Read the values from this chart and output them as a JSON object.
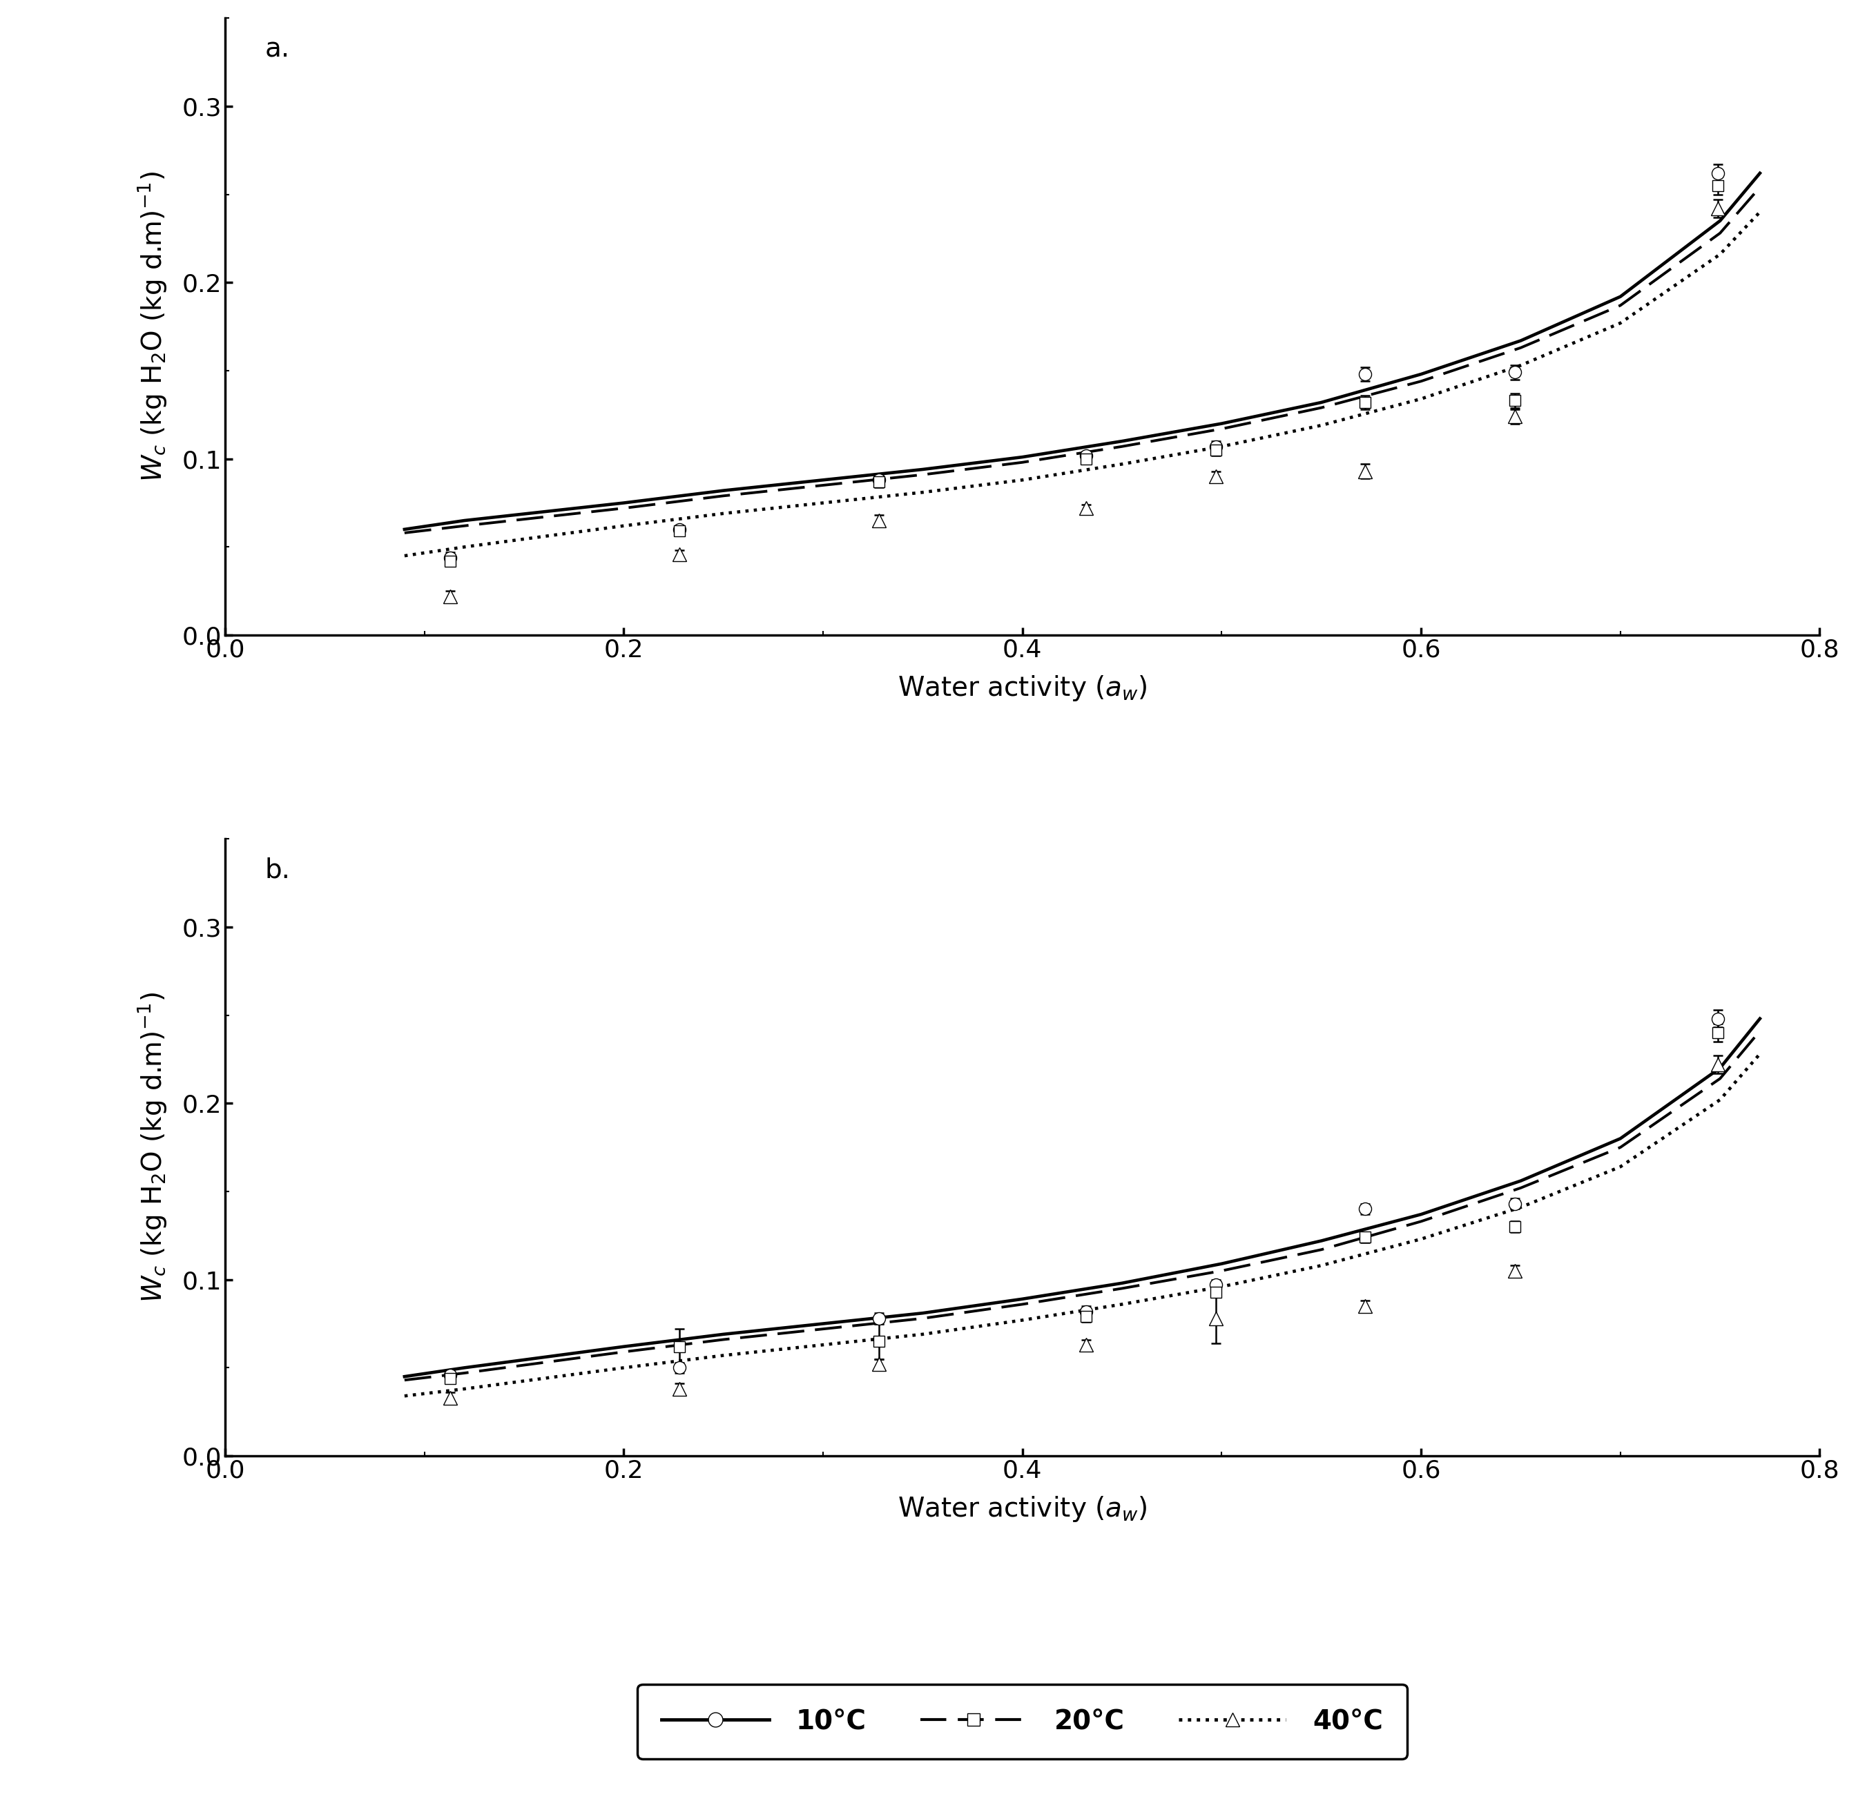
{
  "panel_a_label": "a.",
  "panel_b_label": "b.",
  "xlim": [
    0.0,
    0.8
  ],
  "ylim": [
    0.0,
    0.35
  ],
  "xticks": [
    0.0,
    0.2,
    0.4,
    0.6,
    0.8
  ],
  "yticks": [
    0.0,
    0.1,
    0.2,
    0.3
  ],
  "panel_a": {
    "data_10C": {
      "x": [
        0.113,
        0.228,
        0.328,
        0.432,
        0.497,
        0.572,
        0.647,
        0.749
      ],
      "y": [
        0.044,
        0.06,
        0.088,
        0.102,
        0.107,
        0.148,
        0.149,
        0.262
      ],
      "yerr": [
        0.003,
        0.002,
        0.003,
        0.002,
        0.003,
        0.004,
        0.004,
        0.005
      ]
    },
    "data_20C": {
      "x": [
        0.113,
        0.228,
        0.328,
        0.432,
        0.497,
        0.572,
        0.647,
        0.749
      ],
      "y": [
        0.042,
        0.059,
        0.087,
        0.1,
        0.105,
        0.132,
        0.133,
        0.255
      ],
      "yerr": [
        0.003,
        0.002,
        0.003,
        0.002,
        0.003,
        0.004,
        0.004,
        0.005
      ]
    },
    "data_40C": {
      "x": [
        0.113,
        0.228,
        0.328,
        0.432,
        0.497,
        0.572,
        0.647,
        0.749
      ],
      "y": [
        0.022,
        0.046,
        0.065,
        0.072,
        0.09,
        0.093,
        0.124,
        0.242
      ],
      "yerr": [
        0.003,
        0.002,
        0.003,
        0.002,
        0.003,
        0.004,
        0.004,
        0.005
      ]
    },
    "curve_10C": {
      "x": [
        0.09,
        0.12,
        0.16,
        0.2,
        0.25,
        0.3,
        0.35,
        0.4,
        0.45,
        0.5,
        0.55,
        0.6,
        0.65,
        0.7,
        0.75,
        0.77
      ],
      "y": [
        0.06,
        0.065,
        0.07,
        0.075,
        0.082,
        0.088,
        0.094,
        0.101,
        0.11,
        0.12,
        0.132,
        0.148,
        0.167,
        0.192,
        0.235,
        0.262
      ]
    },
    "curve_20C": {
      "x": [
        0.09,
        0.12,
        0.16,
        0.2,
        0.25,
        0.3,
        0.35,
        0.4,
        0.45,
        0.5,
        0.55,
        0.6,
        0.65,
        0.7,
        0.75,
        0.77
      ],
      "y": [
        0.058,
        0.062,
        0.067,
        0.072,
        0.079,
        0.085,
        0.091,
        0.098,
        0.107,
        0.117,
        0.129,
        0.144,
        0.163,
        0.187,
        0.228,
        0.254
      ]
    },
    "curve_40C": {
      "x": [
        0.09,
        0.12,
        0.16,
        0.2,
        0.25,
        0.3,
        0.35,
        0.4,
        0.45,
        0.5,
        0.55,
        0.6,
        0.65,
        0.7,
        0.75,
        0.77
      ],
      "y": [
        0.045,
        0.05,
        0.056,
        0.062,
        0.069,
        0.075,
        0.081,
        0.088,
        0.097,
        0.107,
        0.119,
        0.134,
        0.153,
        0.177,
        0.216,
        0.24
      ]
    }
  },
  "panel_b": {
    "data_10C": {
      "x": [
        0.113,
        0.228,
        0.328,
        0.432,
        0.497,
        0.572,
        0.647,
        0.749
      ],
      "y": [
        0.046,
        0.05,
        0.078,
        0.082,
        0.097,
        0.14,
        0.143,
        0.248
      ],
      "yerr": [
        0.003,
        0.003,
        0.003,
        0.003,
        0.003,
        0.003,
        0.003,
        0.005
      ]
    },
    "data_20C": {
      "x": [
        0.113,
        0.228,
        0.328,
        0.432,
        0.497,
        0.572,
        0.647,
        0.749
      ],
      "y": [
        0.044,
        0.062,
        0.065,
        0.079,
        0.093,
        0.124,
        0.13,
        0.24
      ],
      "yerr": [
        0.003,
        0.01,
        0.01,
        0.003,
        0.003,
        0.003,
        0.003,
        0.005
      ]
    },
    "data_40C": {
      "x": [
        0.113,
        0.228,
        0.328,
        0.432,
        0.497,
        0.572,
        0.647,
        0.749
      ],
      "y": [
        0.033,
        0.038,
        0.052,
        0.063,
        0.078,
        0.085,
        0.105,
        0.222
      ],
      "yerr": [
        0.003,
        0.003,
        0.003,
        0.003,
        0.014,
        0.003,
        0.003,
        0.005
      ]
    },
    "curve_10C": {
      "x": [
        0.09,
        0.12,
        0.16,
        0.2,
        0.25,
        0.3,
        0.35,
        0.4,
        0.45,
        0.5,
        0.55,
        0.6,
        0.65,
        0.7,
        0.75,
        0.77
      ],
      "y": [
        0.045,
        0.05,
        0.056,
        0.062,
        0.069,
        0.075,
        0.081,
        0.089,
        0.098,
        0.109,
        0.122,
        0.137,
        0.156,
        0.18,
        0.22,
        0.248
      ]
    },
    "curve_20C": {
      "x": [
        0.09,
        0.12,
        0.16,
        0.2,
        0.25,
        0.3,
        0.35,
        0.4,
        0.45,
        0.5,
        0.55,
        0.6,
        0.65,
        0.7,
        0.75,
        0.77
      ],
      "y": [
        0.043,
        0.047,
        0.053,
        0.059,
        0.066,
        0.072,
        0.078,
        0.086,
        0.095,
        0.105,
        0.117,
        0.133,
        0.152,
        0.175,
        0.214,
        0.241
      ]
    },
    "curve_40C": {
      "x": [
        0.09,
        0.12,
        0.16,
        0.2,
        0.25,
        0.3,
        0.35,
        0.4,
        0.45,
        0.5,
        0.55,
        0.6,
        0.65,
        0.7,
        0.75,
        0.77
      ],
      "y": [
        0.034,
        0.038,
        0.044,
        0.05,
        0.057,
        0.063,
        0.069,
        0.077,
        0.086,
        0.096,
        0.108,
        0.123,
        0.141,
        0.164,
        0.202,
        0.228
      ]
    }
  },
  "background_color": "#ffffff",
  "line_color": "black",
  "marker_facecolor": "white",
  "marker_edgecolor": "black",
  "marker_size": 13,
  "linewidth": 2.8,
  "font_size": 26,
  "label_font_size": 28,
  "tick_font_size": 26
}
